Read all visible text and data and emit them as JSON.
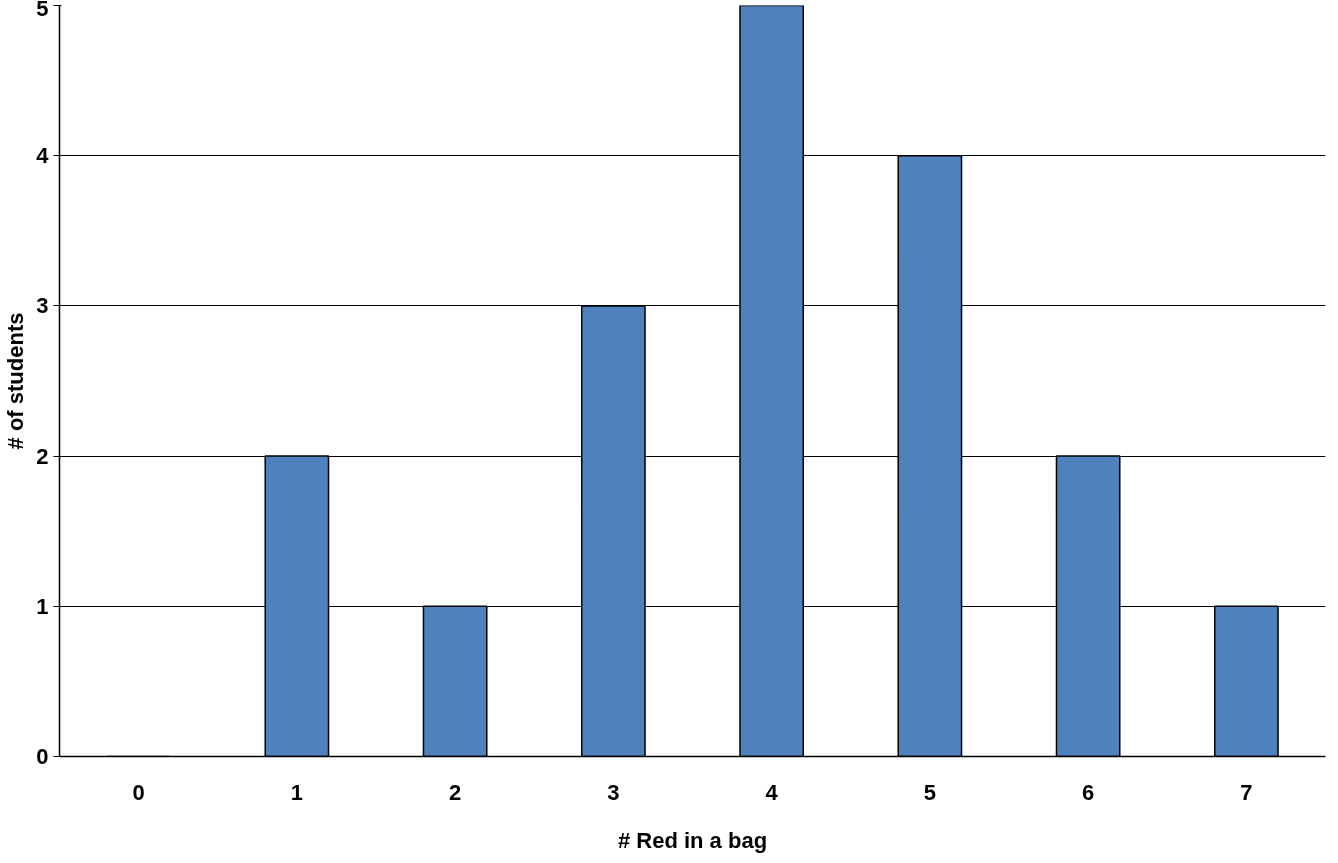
{
  "chart_data": {
    "type": "bar",
    "xlabel": "# Red in a bag",
    "ylabel": "# of students",
    "categories": [
      "0",
      "1",
      "2",
      "3",
      "4",
      "5",
      "6",
      "7"
    ],
    "series": [
      {
        "color": "#4f81bd",
        "values": [
          0,
          2,
          1,
          3,
          5,
          4,
          2,
          1
        ]
      }
    ],
    "ylim": [
      0,
      5
    ],
    "yticks": [
      0,
      1,
      2,
      3,
      4,
      5
    ],
    "grid": "y"
  }
}
